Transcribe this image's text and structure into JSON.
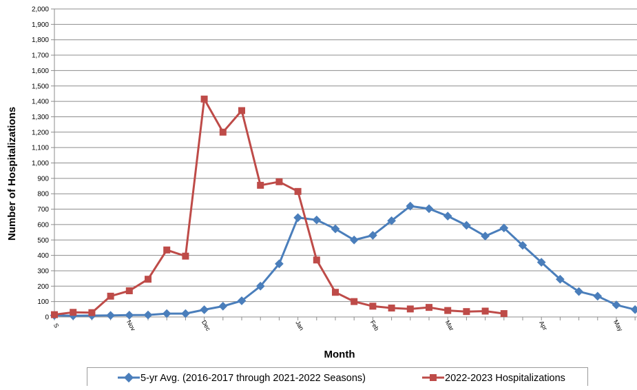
{
  "chart_data": {
    "type": "line",
    "title": "",
    "xlabel": "Month",
    "ylabel": "Number of Hospitalizations",
    "ylim": [
      0,
      2000
    ],
    "yticks": [
      0,
      100,
      200,
      300,
      400,
      500,
      600,
      700,
      800,
      900,
      1000,
      1100,
      1200,
      1300,
      1400,
      1500,
      1600,
      1700,
      1800,
      1900,
      2000
    ],
    "ytick_labels": [
      "0",
      "100",
      "200",
      "300",
      "400",
      "500",
      "600",
      "700",
      "800",
      "900",
      "1,000",
      "1,100",
      "1,200",
      "1,300",
      "1,400",
      "1,500",
      "1,600",
      "1,700",
      "1,800",
      "1,900",
      "2,000"
    ],
    "xticks": [
      {
        "label": "S",
        "week": 0
      },
      {
        "label": "Nov",
        "week": 4
      },
      {
        "label": "Dec",
        "week": 8
      },
      {
        "label": "Jan",
        "week": 13
      },
      {
        "label": "Feb",
        "week": 17
      },
      {
        "label": "Mar",
        "week": 21
      },
      {
        "label": "Apr",
        "week": 26
      },
      {
        "label": "May",
        "week": 30
      }
    ],
    "grid": true,
    "legend_position": "bottom",
    "series": [
      {
        "name": "5-yr Avg. (2016-2017 through 2021-2022 Seasons)",
        "color": "#4a7ebb",
        "marker": "diamond",
        "x": [
          0,
          1,
          2,
          3,
          4,
          5,
          6,
          7,
          8,
          9,
          10,
          11,
          12,
          13,
          14,
          15,
          16,
          17,
          18,
          19,
          20,
          21,
          22,
          23,
          24,
          25,
          26,
          27,
          28,
          29,
          30,
          31,
          32
        ],
        "values": [
          10,
          8,
          9,
          10,
          12,
          13,
          22,
          22,
          47,
          70,
          105,
          200,
          345,
          645,
          630,
          572,
          500,
          530,
          625,
          720,
          703,
          655,
          595,
          525,
          578,
          465,
          355,
          245,
          165,
          135,
          78,
          48,
          40
        ]
      },
      {
        "name": "2022-2023 Hospitalizations",
        "color": "#be4b48",
        "marker": "square",
        "x": [
          0,
          1,
          2,
          3,
          4,
          5,
          6,
          7,
          8,
          9,
          10,
          11,
          12,
          13,
          14,
          15,
          16,
          17,
          18,
          19,
          20,
          21,
          22,
          23,
          24
        ],
        "values": [
          15,
          30,
          28,
          135,
          170,
          245,
          435,
          395,
          1415,
          1200,
          1340,
          855,
          878,
          815,
          370,
          160,
          100,
          70,
          58,
          52,
          62,
          42,
          35,
          38,
          22
        ]
      }
    ]
  }
}
